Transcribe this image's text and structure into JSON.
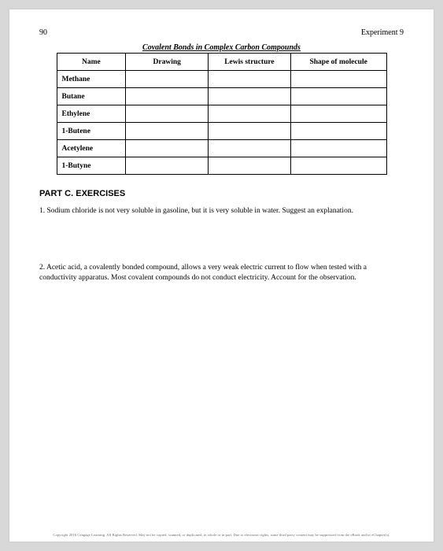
{
  "header": {
    "page_number": "90",
    "experiment_label": "Experiment 9"
  },
  "table": {
    "caption": "Covalent Bonds in Complex Carbon Compounds",
    "columns": [
      "Name",
      "Drawing",
      "Lewis structure",
      "Shape of molecule"
    ],
    "rows": [
      {
        "name": "Methane",
        "drawing": "",
        "lewis": "",
        "shape": ""
      },
      {
        "name": "Butane",
        "drawing": "",
        "lewis": "",
        "shape": ""
      },
      {
        "name": "Ethylene",
        "drawing": "",
        "lewis": "",
        "shape": ""
      },
      {
        "name": "1-Butene",
        "drawing": "",
        "lewis": "",
        "shape": ""
      },
      {
        "name": "Acetylene",
        "drawing": "",
        "lewis": "",
        "shape": ""
      },
      {
        "name": "1-Butyne",
        "drawing": "",
        "lewis": "",
        "shape": ""
      }
    ]
  },
  "partC": {
    "title": "PART C. EXERCISES",
    "q1": "1. Sodium chloride is not very soluble in gasoline, but it is very soluble in water. Suggest an explanation.",
    "q2": "2. Acetic acid, a covalently bonded compound, allows a very weak electric current to flow when tested with a conductivity apparatus. Most covalent compounds do not conduct electricity. Account for the observation."
  },
  "footer": "Copyright 2016 Cengage Learning. All Rights Reserved. May not be copied, scanned, or duplicated, in whole or in part. Due to electronic rights, some third party content may be suppressed from the eBook and/or eChapter(s)."
}
